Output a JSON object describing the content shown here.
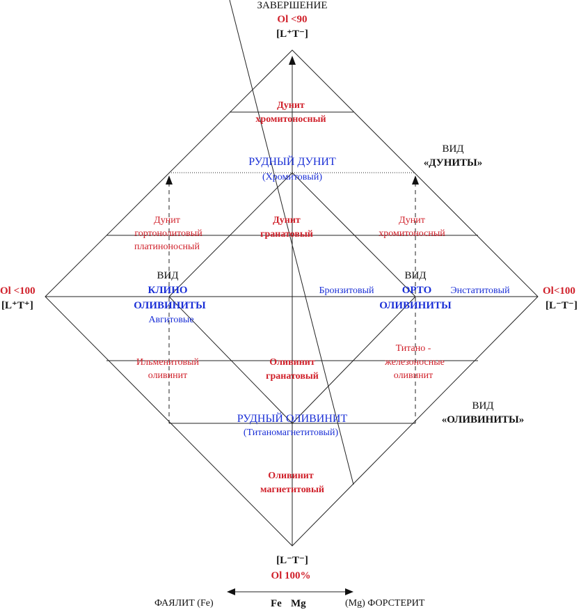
{
  "top": {
    "title": "ЗАВЕРШЕНИЕ",
    "ol": "Ol <90",
    "formula": "[L⁺T⁻]"
  },
  "left": {
    "ol": "Ol <100",
    "formula": "[L⁺T⁺]"
  },
  "right": {
    "ol": "Ol<100",
    "formula": "[L⁻T⁻]"
  },
  "bottom": {
    "formula": "[L⁻T⁻]",
    "ol": "Ol  100%",
    "faialit": "ФАЯЛИТ (Fe)",
    "fe": "Fe",
    "mg": "Mg",
    "forsterit": "(Mg) ФОРСТЕРИТ"
  },
  "vid_dunity": {
    "vid": "ВИД",
    "name": "«ДУНИТЫ»"
  },
  "vid_olivinity": {
    "vid": "ВИД",
    "name": "«ОЛИВИНИТЫ»"
  },
  "zones": {
    "dunit_hrom_top": {
      "l1": "Дунит",
      "l2": "хромитоносный"
    },
    "rudny_dunit": {
      "l1": "РУДНЫЙ  ДУНИТ",
      "l2": "(Хромитовый)"
    },
    "dunit_gorton": {
      "l1": "Дунит",
      "l2": "гортонолитовый",
      "l3": "платиноносный"
    },
    "dunit_granat": {
      "l1": "Дунит",
      "l2": "гранатовый"
    },
    "dunit_hrom_right": {
      "l1": "Дунит",
      "l2": "хромитоносный"
    },
    "klino": {
      "vid": "ВИД",
      "l1": "КЛИНО",
      "l2": "ОЛИВИНИТЫ",
      "l3": "Авгитовые"
    },
    "orto": {
      "vid": "ВИД",
      "l1": "ОРТО",
      "l2": "ОЛИВИНИТЫ",
      "bronz": "Бронзитовый",
      "enst": "Энстатитовый"
    },
    "ilmenit": {
      "l1": "Ильменитовый",
      "l2": "оливинит"
    },
    "olivinit_granat": {
      "l1": "Оливинит",
      "l2": "гранатовый"
    },
    "titano": {
      "l1": "Титано -",
      "l2": "железоносные",
      "l3": "оливинит"
    },
    "rudny_olivinit": {
      "l1": "РУДНЫЙ ОЛИВИНИТ",
      "l2": "(Титаномагнетитовый)"
    },
    "olivinit_magnet": {
      "l1": "Оливинит",
      "l2": "магнетитовый"
    }
  }
}
